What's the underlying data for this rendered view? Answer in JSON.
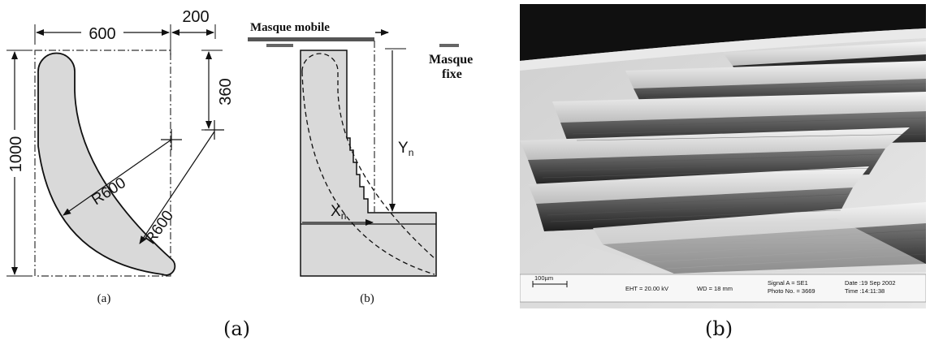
{
  "panel_a": {
    "dimensions": {
      "width_600": "600",
      "width_200": "200",
      "height_1000": "1000",
      "height_360": "360",
      "radius_1": "R600",
      "radius_2": "R600"
    },
    "masks": {
      "mobile": "Masque mobile",
      "fixed_line1": "Masque",
      "fixed_line2": "fixe"
    },
    "variables": {
      "x": "X",
      "x_sub": "n",
      "y": "Y",
      "y_sub": "n"
    },
    "sublabels": {
      "a": "(a)",
      "b": "(b)"
    },
    "colors": {
      "fill": "#d9d9d9",
      "mask": "#555555"
    }
  },
  "panel_b": {
    "scale_bar": "100µm",
    "eht": "EHT = 20.00 kV",
    "wd": "WD =  18 mm",
    "signal": "Signal A = SE1",
    "photo": "Photo No. = 3669",
    "date": "Date :19 Sep 2002",
    "time": "Time :14:11:38"
  },
  "captions": {
    "a": "(a)",
    "b": "(b)"
  }
}
